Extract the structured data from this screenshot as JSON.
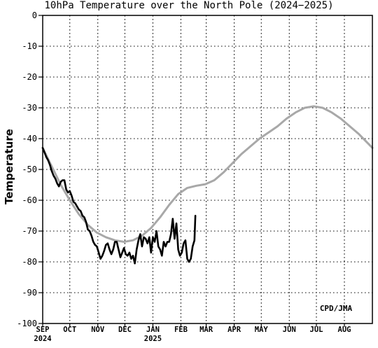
{
  "chart_data": {
    "type": "line",
    "title": "10hPa Temperature over the North Pole (2024−2025)",
    "ylabel": "Temperature",
    "xlabel": "",
    "credit": "CPD/JMA",
    "ylim": [
      -100,
      0
    ],
    "yticks": [
      0,
      -10,
      -20,
      -30,
      -40,
      -50,
      -60,
      -70,
      -80,
      -90,
      -100
    ],
    "xlim_days": [
      0,
      365
    ],
    "grid": true,
    "x_ticks": [
      {
        "day": 0,
        "label": "SEP",
        "sub": "2024"
      },
      {
        "day": 30,
        "label": "OCT",
        "sub": ""
      },
      {
        "day": 61,
        "label": "NOV",
        "sub": ""
      },
      {
        "day": 91,
        "label": "DEC",
        "sub": ""
      },
      {
        "day": 122,
        "label": "JAN",
        "sub": "2025"
      },
      {
        "day": 153,
        "label": "FEB",
        "sub": ""
      },
      {
        "day": 181,
        "label": "MAR",
        "sub": ""
      },
      {
        "day": 212,
        "label": "APR",
        "sub": ""
      },
      {
        "day": 242,
        "label": "MAY",
        "sub": ""
      },
      {
        "day": 273,
        "label": "JUN",
        "sub": ""
      },
      {
        "day": 303,
        "label": "JUL",
        "sub": ""
      },
      {
        "day": 334,
        "label": "AUG",
        "sub": ""
      }
    ],
    "series": [
      {
        "role": "climatology",
        "color": "#a8a8a8",
        "points": [
          [
            0,
            -43
          ],
          [
            10,
            -49
          ],
          [
            20,
            -55
          ],
          [
            30,
            -60
          ],
          [
            40,
            -64.5
          ],
          [
            50,
            -68
          ],
          [
            60,
            -70.5
          ],
          [
            70,
            -72
          ],
          [
            80,
            -73
          ],
          [
            90,
            -73.5
          ],
          [
            100,
            -73
          ],
          [
            110,
            -71.5
          ],
          [
            120,
            -69
          ],
          [
            130,
            -65.5
          ],
          [
            140,
            -61.5
          ],
          [
            150,
            -58
          ],
          [
            160,
            -56
          ],
          [
            170,
            -55.3
          ],
          [
            180,
            -54.8
          ],
          [
            190,
            -53.5
          ],
          [
            200,
            -51
          ],
          [
            210,
            -48
          ],
          [
            220,
            -45
          ],
          [
            230,
            -42.5
          ],
          [
            240,
            -40
          ],
          [
            250,
            -38
          ],
          [
            260,
            -36
          ],
          [
            270,
            -33.5
          ],
          [
            280,
            -31.5
          ],
          [
            290,
            -30
          ],
          [
            300,
            -29.5
          ],
          [
            310,
            -30
          ],
          [
            320,
            -31.5
          ],
          [
            330,
            -33.5
          ],
          [
            340,
            -36
          ],
          [
            350,
            -38.5
          ],
          [
            360,
            -41.5
          ],
          [
            365,
            -43
          ]
        ]
      },
      {
        "role": "observed",
        "color": "#000000",
        "points": [
          [
            0,
            -43
          ],
          [
            2,
            -44.5
          ],
          [
            4,
            -46
          ],
          [
            6,
            -47
          ],
          [
            8,
            -48.5
          ],
          [
            10,
            -50.5
          ],
          [
            12,
            -52
          ],
          [
            14,
            -53
          ],
          [
            16,
            -54.5
          ],
          [
            18,
            -55.5
          ],
          [
            20,
            -54
          ],
          [
            22,
            -53.5
          ],
          [
            24,
            -53.5
          ],
          [
            26,
            -56.5
          ],
          [
            28,
            -57.5
          ],
          [
            30,
            -57
          ],
          [
            32,
            -58.5
          ],
          [
            34,
            -60.5
          ],
          [
            36,
            -61
          ],
          [
            38,
            -62
          ],
          [
            40,
            -63
          ],
          [
            42,
            -63.5
          ],
          [
            44,
            -65
          ],
          [
            46,
            -65.5
          ],
          [
            48,
            -67
          ],
          [
            50,
            -69.5
          ],
          [
            52,
            -70
          ],
          [
            54,
            -71.5
          ],
          [
            56,
            -73.5
          ],
          [
            58,
            -74.5
          ],
          [
            60,
            -75
          ],
          [
            62,
            -77
          ],
          [
            64,
            -79
          ],
          [
            66,
            -78
          ],
          [
            68,
            -76.5
          ],
          [
            70,
            -74.5
          ],
          [
            72,
            -74
          ],
          [
            74,
            -76
          ],
          [
            76,
            -77.5
          ],
          [
            78,
            -76
          ],
          [
            80,
            -73.5
          ],
          [
            82,
            -73.5
          ],
          [
            84,
            -76
          ],
          [
            86,
            -78.5
          ],
          [
            88,
            -77
          ],
          [
            90,
            -75.5
          ],
          [
            92,
            -77.5
          ],
          [
            94,
            -78
          ],
          [
            96,
            -77
          ],
          [
            98,
            -79
          ],
          [
            100,
            -78
          ],
          [
            102,
            -80.5
          ],
          [
            104,
            -76
          ],
          [
            106,
            -73
          ],
          [
            108,
            -71
          ],
          [
            110,
            -75
          ],
          [
            112,
            -72
          ],
          [
            114,
            -72.5
          ],
          [
            116,
            -74
          ],
          [
            118,
            -72
          ],
          [
            120,
            -77
          ],
          [
            122,
            -72
          ],
          [
            124,
            -73.5
          ],
          [
            126,
            -70
          ],
          [
            128,
            -75
          ],
          [
            130,
            -76
          ],
          [
            132,
            -78
          ],
          [
            134,
            -73.5
          ],
          [
            136,
            -75
          ],
          [
            138,
            -73.5
          ],
          [
            140,
            -73.5
          ],
          [
            142,
            -71
          ],
          [
            144,
            -66
          ],
          [
            146,
            -72.5
          ],
          [
            148,
            -67.5
          ],
          [
            150,
            -76
          ],
          [
            152,
            -78
          ],
          [
            154,
            -77
          ],
          [
            156,
            -74
          ],
          [
            158,
            -73
          ],
          [
            160,
            -79
          ],
          [
            162,
            -80
          ],
          [
            164,
            -79
          ],
          [
            166,
            -75
          ],
          [
            168,
            -73
          ],
          [
            169,
            -65
          ]
        ]
      }
    ]
  }
}
